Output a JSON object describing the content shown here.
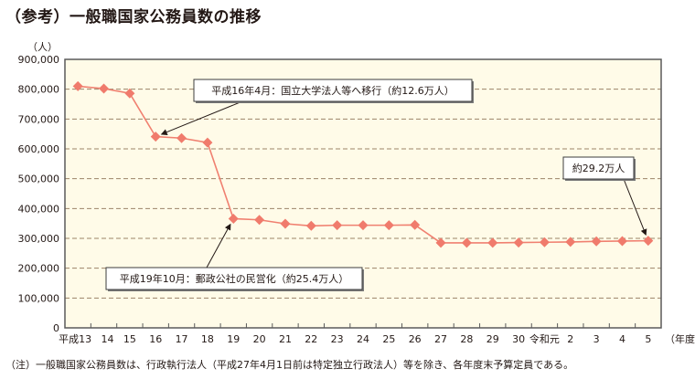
{
  "title": "（参考）一般職国家公務員数の推移",
  "footnote": "（注）一般職国家公務員数は、行政執行法人（平成27年4月1日前は特定独立行政法人）等を除き、各年度末予算定員である。",
  "colors": {
    "plot_bg": "#fffbe8",
    "line": "#f08070",
    "marker": "#f07b6c",
    "grid": "#9c8468",
    "axis": "#5a5a5a"
  },
  "chart_data": {
    "type": "line",
    "title": "（参考）一般職国家公務員数の推移",
    "xlabel": "（年度）",
    "ylabel": "（人）",
    "ylim": [
      0,
      900000
    ],
    "yticks": [
      0,
      100000,
      200000,
      300000,
      400000,
      500000,
      600000,
      700000,
      800000,
      900000
    ],
    "ytick_labels": [
      "0",
      "100,000",
      "200,000",
      "300,000",
      "400,000",
      "500,000",
      "600,000",
      "700,000",
      "800,000",
      "900,000"
    ],
    "grid": "horizontal dashed",
    "categories": [
      "平成13",
      "14",
      "15",
      "16",
      "17",
      "18",
      "19",
      "20",
      "21",
      "22",
      "23",
      "24",
      "25",
      "26",
      "27",
      "28",
      "29",
      "30",
      "令和元",
      "2",
      "3",
      "4",
      "5"
    ],
    "series": [
      {
        "name": "一般職国家公務員数",
        "values": [
          810000,
          802000,
          786000,
          641000,
          636000,
          621000,
          366000,
          362000,
          349000,
          342000,
          344000,
          344000,
          344000,
          345000,
          285000,
          285000,
          285000,
          286000,
          287000,
          288000,
          290000,
          291000,
          292000
        ]
      }
    ],
    "annotations": [
      {
        "text": "平成16年4月：国立大学法人等へ移行（約12.6万人）",
        "target_index": 3
      },
      {
        "text": "平成19年10月：郵政公社の民営化（約25.4万人）",
        "target_index": 6
      },
      {
        "text": "約29.2万人",
        "target_index": 22
      }
    ]
  }
}
